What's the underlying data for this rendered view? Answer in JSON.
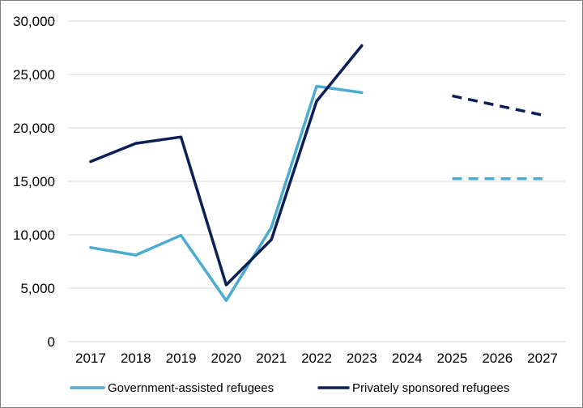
{
  "chart_data": {
    "type": "line",
    "title": "",
    "xlabel": "",
    "ylabel": "",
    "categories": [
      "2017",
      "2018",
      "2019",
      "2020",
      "2021",
      "2022",
      "2023",
      "2024",
      "2025",
      "2026",
      "2027"
    ],
    "y_ticks": [
      0,
      5000,
      10000,
      15000,
      20000,
      25000,
      30000
    ],
    "y_tick_labels": [
      "0",
      "5,000",
      "10,000",
      "15,000",
      "20,000",
      "25,000",
      "30,000"
    ],
    "ylim": [
      0,
      30000
    ],
    "grid": "horizontal",
    "legend_position": "bottom",
    "series": [
      {
        "name": "Government-assisted refugees",
        "color": "#4bacd0",
        "values": [
          8800,
          8100,
          9950,
          3850,
          10700,
          23900,
          23300,
          null,
          null,
          null,
          null
        ],
        "projection_values": [
          null,
          null,
          null,
          null,
          null,
          null,
          null,
          null,
          15250,
          15250,
          15250
        ]
      },
      {
        "name": "Privately sponsored refugees",
        "color": "#0c1f56",
        "values": [
          16850,
          18550,
          19150,
          5300,
          9550,
          22500,
          27700,
          null,
          null,
          null,
          null
        ],
        "projection_values": [
          null,
          null,
          null,
          null,
          null,
          null,
          null,
          null,
          23000,
          22100,
          21200
        ]
      }
    ]
  }
}
